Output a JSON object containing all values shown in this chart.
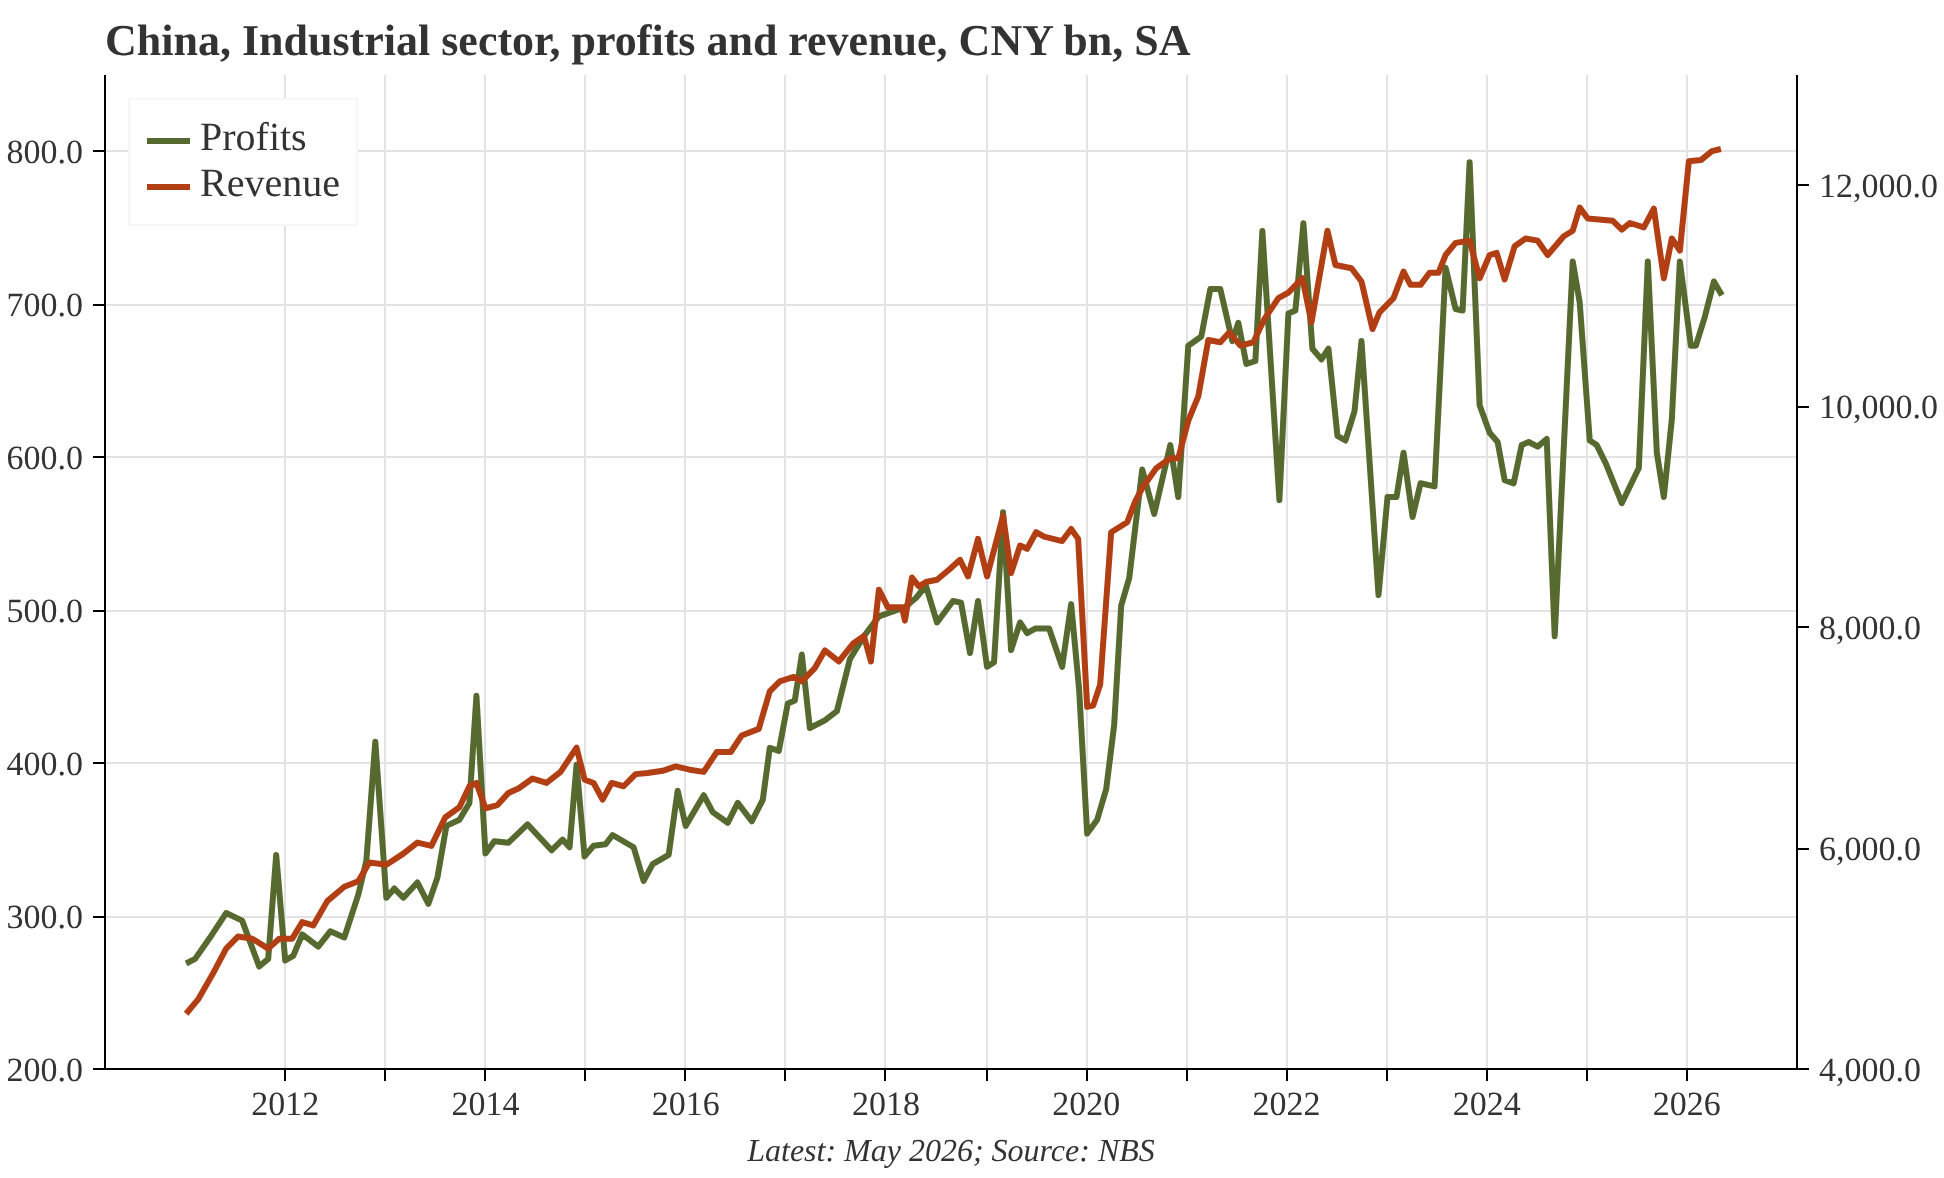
{
  "chart_data": {
    "type": "line",
    "title": "China, Industrial sector, profits and revenue, CNY bn, SA",
    "annotations": [
      "Latest: May 2026; Source: NBS"
    ],
    "xlim": [
      2010.2,
      2027.1
    ],
    "xticks": [
      2012,
      {
        "value": 2013,
        "label": null
      },
      2014,
      {
        "value": 2015,
        "label": null
      },
      2016,
      {
        "value": 2017,
        "label": null
      },
      2018,
      {
        "value": 2019,
        "label": null
      },
      2020,
      {
        "value": 2021,
        "label": null
      },
      2022,
      {
        "value": 2023,
        "label": null
      },
      2024,
      {
        "value": 2025,
        "label": null
      },
      2026
    ],
    "ylim": [
      200,
      850
    ],
    "yticks": [
      {
        "value": 200,
        "label": "200.0"
      },
      {
        "value": 300,
        "label": "300.0"
      },
      {
        "value": 400,
        "label": "400.0"
      },
      {
        "value": 500,
        "label": "500.0"
      },
      {
        "value": 600,
        "label": "600.0"
      },
      {
        "value": 700,
        "label": "700.0"
      },
      {
        "value": 800,
        "label": "800.0"
      }
    ],
    "y2lim": [
      4000,
      13000
    ],
    "y2ticks": [
      {
        "value": 4000,
        "label": "4,000.0"
      },
      {
        "value": 6000,
        "label": "6,000.0"
      },
      {
        "value": 8000,
        "label": "8,000.0"
      },
      {
        "value": 10000,
        "label": "10,000.0"
      },
      {
        "value": 12000,
        "label": "12,000.0"
      }
    ],
    "grid": true,
    "legend": "top left",
    "line_style": "solid",
    "series": [
      {
        "name": "Profits",
        "color": "#56692f",
        "x": [
          2011.01,
          2011.1,
          2011.27,
          2011.41,
          2011.57,
          2011.74,
          2011.83,
          2011.91,
          2012.0,
          2012.08,
          2012.17,
          2012.33,
          2012.45,
          2012.59,
          2012.73,
          2012.81,
          2012.9,
          2013.01,
          2013.09,
          2013.18,
          2013.32,
          2013.43,
          2013.52,
          2013.61,
          2013.74,
          2013.84,
          2013.91,
          2014.0,
          2014.09,
          2014.23,
          2014.42,
          2014.66,
          2014.77,
          2014.84,
          2014.91,
          2014.99,
          2015.08,
          2015.2,
          2015.27,
          2015.48,
          2015.58,
          2015.67,
          2015.83,
          2015.92,
          2016.0,
          2016.18,
          2016.27,
          2016.42,
          2016.52,
          2016.66,
          2016.77,
          2016.84,
          2016.93,
          2017.02,
          2017.09,
          2017.16,
          2017.24,
          2017.39,
          2017.51,
          2017.64,
          2017.78,
          2017.93,
          2018.19,
          2018.3,
          2018.4,
          2018.51,
          2018.67,
          2018.75,
          2018.84,
          2018.92,
          2019.01,
          2019.08,
          2019.17,
          2019.25,
          2019.34,
          2019.41,
          2019.49,
          2019.63,
          2019.76,
          2019.85,
          2019.93,
          2020.01,
          2020.11,
          2020.2,
          2020.28,
          2020.35,
          2020.43,
          2020.56,
          2020.68,
          2020.84,
          2020.92,
          2021.02,
          2021.15,
          2021.24,
          2021.34,
          2021.46,
          2021.52,
          2021.6,
          2021.69,
          2021.76,
          2021.93,
          2022.02,
          2022.09,
          2022.17,
          2022.26,
          2022.35,
          2022.42,
          2022.51,
          2022.59,
          2022.68,
          2022.75,
          2022.92,
          2023.01,
          2023.1,
          2023.17,
          2023.26,
          2023.34,
          2023.48,
          2023.59,
          2023.69,
          2023.76,
          2023.83,
          2023.93,
          2024.03,
          2024.11,
          2024.18,
          2024.27,
          2024.35,
          2024.42,
          2024.51,
          2024.6,
          2024.68,
          2024.86,
          2024.93,
          2025.03,
          2025.1,
          2025.19,
          2025.35,
          2025.52,
          2025.61,
          2025.7,
          2025.77,
          2025.85,
          2025.93,
          2026.04,
          2026.09,
          2026.18,
          2026.27,
          2026.35
        ],
        "values": [
          269,
          272,
          288,
          302,
          297,
          267,
          272,
          340,
          271,
          274,
          288,
          280,
          290,
          286,
          314,
          336,
          414,
          312,
          318,
          312,
          322,
          308,
          325,
          359,
          363,
          374,
          444,
          341,
          349,
          348,
          360,
          343,
          350,
          345,
          399,
          339,
          346,
          347,
          353,
          345,
          323,
          334,
          340,
          382,
          359,
          379,
          368,
          361,
          374,
          362,
          376,
          410,
          408,
          439,
          441,
          471,
          423,
          428,
          434,
          468,
          483,
          496,
          502,
          508,
          516,
          492,
          506,
          505,
          472,
          506,
          463,
          466,
          564,
          474,
          492,
          485,
          488,
          488,
          463,
          504,
          448,
          354,
          363,
          383,
          425,
          503,
          521,
          592,
          563,
          608,
          574,
          673,
          679,
          710,
          710,
          676,
          688,
          661,
          663,
          748,
          572,
          694,
          696,
          753,
          671,
          664,
          671,
          614,
          611,
          630,
          676,
          510,
          574,
          574,
          603,
          561,
          583,
          581,
          724,
          697,
          696,
          793,
          634,
          616,
          610,
          585,
          583,
          608,
          610,
          607,
          612,
          483,
          728,
          701,
          611,
          608,
          596,
          570,
          593,
          728,
          603,
          574,
          625,
          728,
          673,
          673,
          692,
          715,
          706
        ]
      },
      {
        "name": "Revenue",
        "color": "#b23f14",
        "axis": "y2",
        "x": [
          2011.01,
          2011.13,
          2011.27,
          2011.41,
          2011.53,
          2011.67,
          2011.83,
          2011.94,
          2012.07,
          2012.17,
          2012.28,
          2012.42,
          2012.59,
          2012.73,
          2012.84,
          2013.01,
          2013.18,
          2013.32,
          2013.46,
          2013.6,
          2013.74,
          2013.84,
          2013.91,
          2014.0,
          2014.12,
          2014.23,
          2014.33,
          2014.47,
          2014.61,
          2014.75,
          2014.91,
          2014.99,
          2015.08,
          2015.17,
          2015.26,
          2015.38,
          2015.5,
          2015.62,
          2015.77,
          2015.9,
          2016.04,
          2016.18,
          2016.31,
          2016.45,
          2016.56,
          2016.73,
          2016.84,
          2016.94,
          2017.08,
          2017.16,
          2017.29,
          2017.39,
          2017.53,
          2017.67,
          2017.78,
          2017.85,
          2017.93,
          2018.02,
          2018.16,
          2018.19,
          2018.26,
          2018.33,
          2018.4,
          2018.51,
          2018.63,
          2018.74,
          2018.82,
          2018.92,
          2019.01,
          2019.17,
          2019.25,
          2019.34,
          2019.41,
          2019.5,
          2019.58,
          2019.76,
          2019.85,
          2019.92,
          2020.01,
          2020.07,
          2020.14,
          2020.25,
          2020.41,
          2020.49,
          2020.56,
          2020.7,
          2020.84,
          2020.92,
          2021.02,
          2021.12,
          2021.22,
          2021.34,
          2021.43,
          2021.54,
          2021.67,
          2021.78,
          2021.92,
          2022.02,
          2022.16,
          2022.25,
          2022.41,
          2022.49,
          2022.65,
          2022.75,
          2022.86,
          2022.93,
          2023.07,
          2023.17,
          2023.24,
          2023.34,
          2023.43,
          2023.52,
          2023.59,
          2023.69,
          2023.83,
          2023.93,
          2024.03,
          2024.1,
          2024.18,
          2024.28,
          2024.39,
          2024.51,
          2024.61,
          2024.77,
          2024.86,
          2024.93,
          2025.01,
          2025.26,
          2025.35,
          2025.43,
          2025.57,
          2025.67,
          2025.77,
          2025.85,
          2025.93,
          2026.02,
          2026.14,
          2026.25,
          2026.34
        ],
        "values": [
          4500,
          4630,
          4850,
          5090,
          5200,
          5180,
          5090,
          5180,
          5180,
          5330,
          5300,
          5520,
          5650,
          5700,
          5870,
          5850,
          5950,
          6050,
          6020,
          6280,
          6370,
          6560,
          6590,
          6360,
          6390,
          6500,
          6540,
          6630,
          6590,
          6690,
          6910,
          6620,
          6590,
          6440,
          6590,
          6560,
          6670,
          6680,
          6700,
          6740,
          6710,
          6690,
          6870,
          6870,
          7020,
          7080,
          7420,
          7510,
          7550,
          7510,
          7630,
          7790,
          7690,
          7850,
          7920,
          7690,
          8340,
          8180,
          8180,
          8060,
          8450,
          8370,
          8410,
          8430,
          8520,
          8610,
          8460,
          8800,
          8460,
          9010,
          8490,
          8740,
          8710,
          8860,
          8820,
          8780,
          8890,
          8800,
          7280,
          7290,
          7480,
          8860,
          8950,
          9140,
          9260,
          9440,
          9530,
          9530,
          9870,
          10090,
          10600,
          10580,
          10670,
          10550,
          10580,
          10790,
          10980,
          11030,
          11160,
          10760,
          11590,
          11280,
          11250,
          11130,
          10700,
          10850,
          10980,
          11220,
          11100,
          11100,
          11210,
          11210,
          11370,
          11480,
          11500,
          11160,
          11370,
          11390,
          11150,
          11450,
          11520,
          11500,
          11370,
          11540,
          11590,
          11800,
          11700,
          11680,
          11600,
          11660,
          11620,
          11790,
          11160,
          11520,
          11410,
          12220,
          12230,
          12310,
          12330
        ]
      }
    ]
  }
}
